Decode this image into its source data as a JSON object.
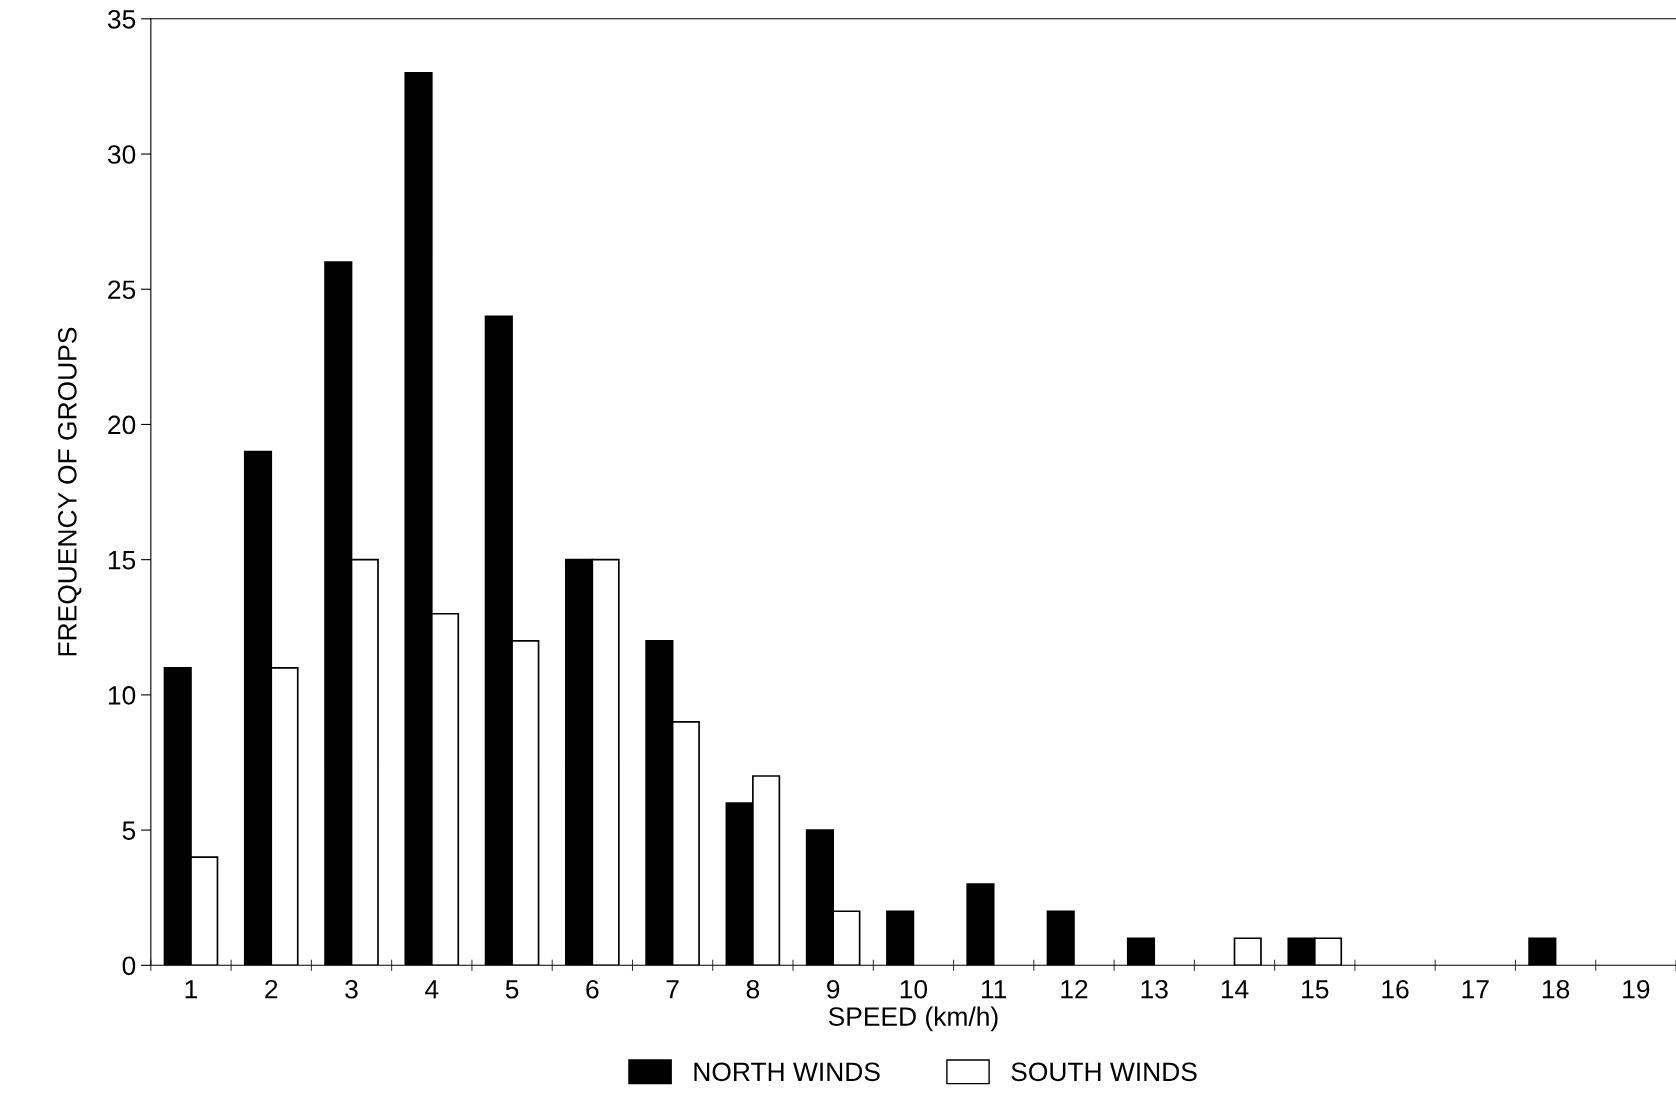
{
  "chart_data": {
    "type": "bar",
    "xlabel": "SPEED (km/h)",
    "ylabel": "FREQUENCY OF GROUPS",
    "categories": [
      "1",
      "2",
      "3",
      "4",
      "5",
      "6",
      "7",
      "8",
      "9",
      "10",
      "11",
      "12",
      "13",
      "14",
      "15",
      "16",
      "17",
      "18",
      "19"
    ],
    "series": [
      {
        "name": "NORTH WINDS",
        "color": "#000000",
        "values": [
          11,
          19,
          26,
          33,
          24,
          15,
          12,
          6,
          5,
          2,
          3,
          2,
          1,
          0,
          1,
          0,
          0,
          1,
          0
        ]
      },
      {
        "name": "SOUTH WINDS",
        "color": "#ffffff",
        "values": [
          4,
          11,
          15,
          13,
          12,
          15,
          9,
          7,
          2,
          0,
          0,
          0,
          0,
          1,
          1,
          0,
          0,
          0,
          0
        ]
      }
    ],
    "ylim": [
      0,
      35
    ],
    "yticks": [
      0,
      5,
      10,
      15,
      20,
      25,
      30,
      35
    ],
    "grid": false,
    "legend": "bottom"
  }
}
